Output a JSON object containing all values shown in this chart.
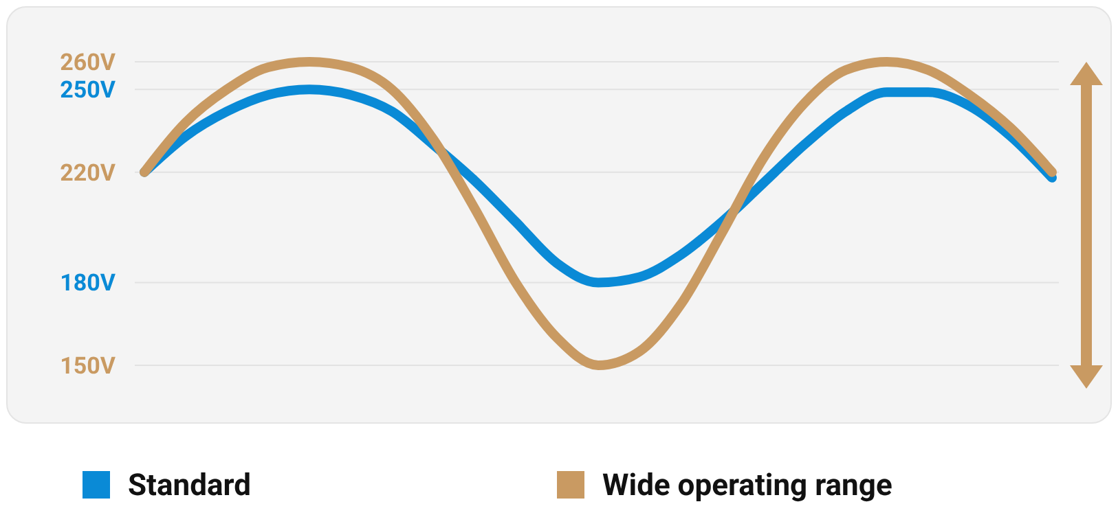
{
  "chart_data": {
    "type": "line",
    "categories": [
      null,
      null,
      null,
      null,
      null,
      null,
      null,
      null,
      null,
      null,
      null,
      null,
      null,
      null,
      null,
      null,
      null,
      null,
      null,
      null,
      null,
      null,
      null
    ],
    "series": [
      {
        "name": "Standard",
        "color": "#0a8ad6",
        "values": [
          220,
          233,
          242,
          248,
          250,
          248,
          242,
          230,
          217,
          202,
          187,
          180,
          182,
          190,
          202,
          216,
          230,
          242,
          249,
          249,
          244,
          233,
          218
        ]
      },
      {
        "name": "Wide operating range",
        "color": "#c99a62",
        "values": [
          220,
          238,
          250,
          258,
          260,
          258,
          250,
          232,
          207,
          180,
          160,
          150,
          155,
          172,
          198,
          225,
          245,
          257,
          260,
          257,
          248,
          236,
          220
        ]
      }
    ],
    "ylim": [
      150,
      260
    ],
    "yticks": [
      {
        "value": 150,
        "label": "150V"
      },
      {
        "value": 180,
        "label": "180V"
      },
      {
        "value": 220,
        "label": "220V"
      },
      {
        "value": 250,
        "label": "250V"
      },
      {
        "value": 260,
        "label": "260V"
      }
    ],
    "grid": "y",
    "legend": "bottom",
    "tick_labels": "y",
    "line_style": "solid",
    "marker": "none"
  }
}
